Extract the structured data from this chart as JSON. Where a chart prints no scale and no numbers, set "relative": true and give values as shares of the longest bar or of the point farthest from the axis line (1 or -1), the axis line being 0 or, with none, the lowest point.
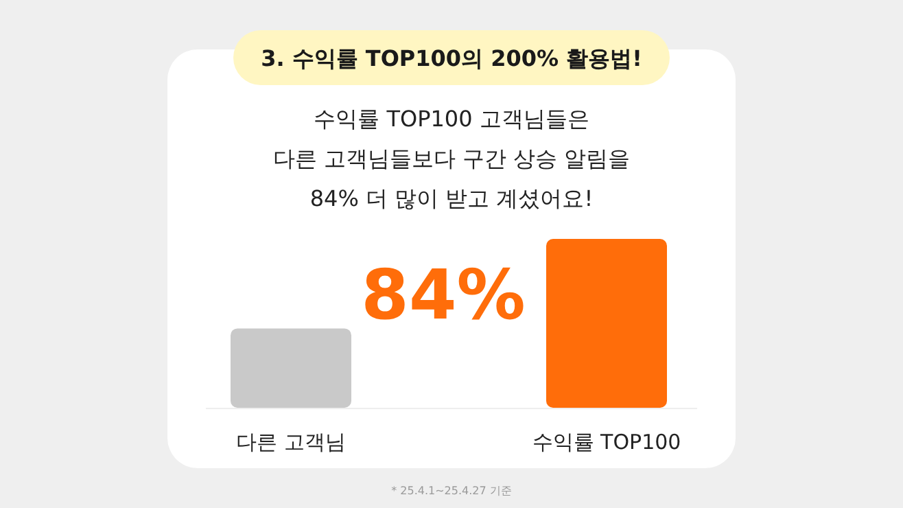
{
  "chart_data": {
    "type": "bar",
    "title": "3. 수익률 TOP100의 200% 활용법!",
    "subtitle": "수익률 TOP100 고객님들은\n다른 고객님들보다 구간 상승 알림을\n84% 더 많이 받고 계셨어요!",
    "categories": [
      "다른 고객님",
      "수익률 TOP100"
    ],
    "values": [
      0.47,
      1
    ],
    "colors": [
      "#c9c9c9",
      "#ff6d0a"
    ],
    "relative": true,
    "annotations": [
      "84%",
      "* 25.4.1~25.4.27 기준"
    ]
  }
}
